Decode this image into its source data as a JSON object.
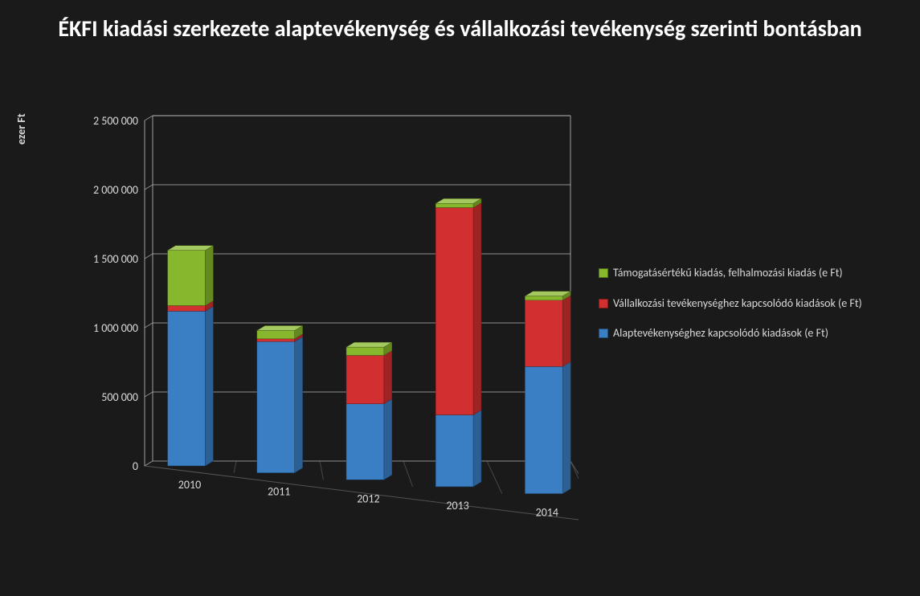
{
  "chart": {
    "type": "stacked-bar-3d",
    "title": "ÉKFI kiadási szerkezete alaptevékenység és vállalkozási tevékenység szerinti bontásban",
    "title_fontsize": 28,
    "title_fontweight": 700,
    "title_color": "#ffffff",
    "background_color": "#1a1a1a",
    "plot_background_color": "#1a1a1a",
    "text_color": "#d9d9d9",
    "font_family": "Calibri, Arial, sans-serif",
    "ylabel": "ezer Ft",
    "ylabel_fontsize": 14,
    "categories": [
      "2010",
      "2011",
      "2012",
      "2013",
      "2014"
    ],
    "category_fontsize": 14,
    "series": [
      {
        "key": "alap",
        "name": "Alaptevékenységhez kapcsolódó kiadások (e Ft)",
        "color": "#3a7fc4",
        "values": [
          1120000,
          950000,
          550000,
          520000,
          920000
        ]
      },
      {
        "key": "vallalkozasi",
        "name": "Vállalkozási tevékenységhez kapcsolódó kiadások (e Ft)",
        "color": "#d23030",
        "values": [
          40000,
          20000,
          350000,
          1500000,
          480000
        ]
      },
      {
        "key": "tamogatas",
        "name": "Támogatásértékű kiadás, felhalmozási kiadás (e Ft)",
        "color": "#87b72c",
        "values": [
          400000,
          60000,
          60000,
          30000,
          30000
        ]
      }
    ],
    "legend_order": [
      "tamogatas",
      "vallalkozasi",
      "alap"
    ],
    "legend_fontsize": 14,
    "yaxis": {
      "min": 0,
      "max": 2500000,
      "tick_step": 500000,
      "tick_labels": [
        "0",
        "500 000",
        "1 000 000",
        "1 500 000",
        "2 000 000",
        "2 500 000"
      ],
      "tick_fontsize": 14
    },
    "grid_color": "#bfbfbf",
    "floor_grid_color": "#8a8a8a",
    "axis_line_color": "#bfbfbf",
    "bar_width_ratio": 0.45,
    "perspective": {
      "depth_x": 10,
      "depth_y": 6,
      "floor_skew": 24
    }
  }
}
